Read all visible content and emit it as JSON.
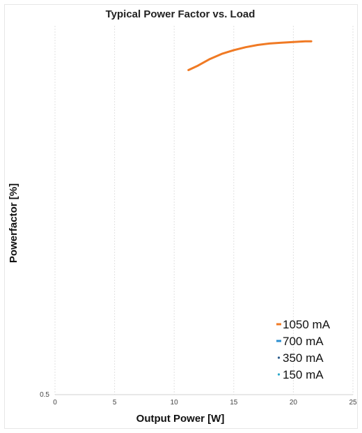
{
  "chart_data": {
    "type": "line",
    "title": "Typical Power Factor vs. Load",
    "xlabel": "Output Power [W]",
    "ylabel": "Powerfactor [%]",
    "xlim": [
      0,
      25
    ],
    "ylim": [
      0.5,
      1.0
    ],
    "x_ticks": [
      "0",
      "5",
      "10",
      "15",
      "20",
      "25"
    ],
    "y_ticks": [
      "0.5"
    ],
    "grid": "vertical",
    "legend_position": "bottom-right",
    "series": [
      {
        "name": "1050 mA",
        "color": "#f07a24",
        "x": [
          11.2,
          12,
          13,
          14,
          15,
          16,
          17,
          18,
          19,
          20,
          21,
          21.5
        ],
        "y": [
          0.94,
          0.946,
          0.955,
          0.962,
          0.967,
          0.971,
          0.974,
          0.976,
          0.977,
          0.978,
          0.979,
          0.979
        ]
      },
      {
        "name": "700 mA",
        "color": "#2b8fd0",
        "x": [],
        "y": []
      },
      {
        "name": "350 mA",
        "color": "#2a5a8a",
        "x": [],
        "y": []
      },
      {
        "name": "150 mA",
        "color": "#2aa7c9",
        "x": [],
        "y": []
      }
    ]
  }
}
